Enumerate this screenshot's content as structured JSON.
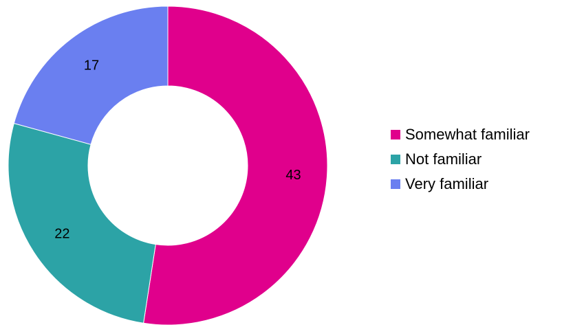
{
  "chart_data": {
    "type": "pie",
    "variant": "donut",
    "title": "",
    "start_angle_deg": 0,
    "direction": "clockwise",
    "legend_position": "right",
    "series": [
      {
        "slices": [
          {
            "label": "Somewhat familiar",
            "value": 43,
            "color": "#e0008c"
          },
          {
            "label": "Not familiar",
            "value": 22,
            "color": "#2ca3a6"
          },
          {
            "label": "Very familiar",
            "value": 17,
            "color": "#6a7ff0"
          }
        ]
      }
    ]
  }
}
